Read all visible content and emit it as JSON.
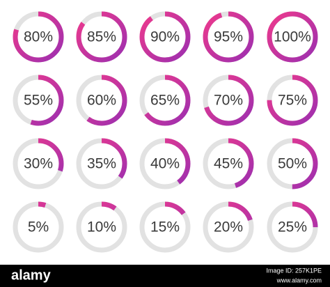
{
  "chart_data": {
    "type": "progress-rings",
    "values": [
      80,
      85,
      90,
      95,
      100,
      55,
      60,
      65,
      70,
      75,
      30,
      35,
      40,
      45,
      50,
      5,
      10,
      15,
      20,
      25
    ],
    "value_labels": [
      "80%",
      "85%",
      "90%",
      "95%",
      "100%",
      "55%",
      "60%",
      "65%",
      "70%",
      "75%",
      "30%",
      "35%",
      "40%",
      "45%",
      "50%",
      "5%",
      "10%",
      "15%",
      "20%",
      "25%"
    ],
    "ylim": [
      0,
      100
    ],
    "colors": [
      "#ee3a8c",
      "#9c2fb0"
    ],
    "track_color": "#e2e2e2"
  },
  "watermark": {
    "brand": "alamy",
    "image_id": "Image ID: 257K1PE",
    "url": "www.alamy.com"
  }
}
